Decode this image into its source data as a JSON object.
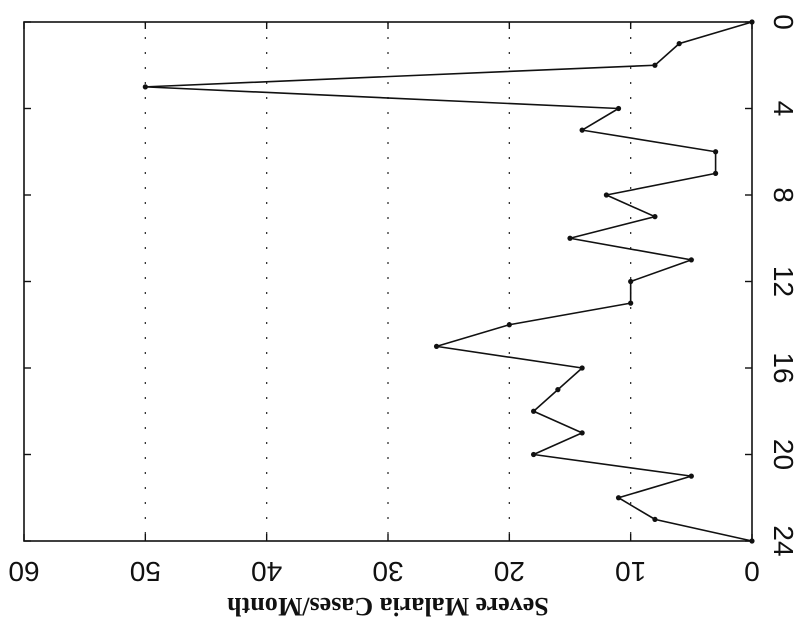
{
  "chart_data": {
    "type": "line",
    "orientation": "rotated-180",
    "ylabel": "Severe Malaria Cases/Month",
    "xlabel": "",
    "xlim": [
      0,
      24
    ],
    "ylim": [
      0,
      60
    ],
    "xticks": [
      0,
      4,
      8,
      12,
      16,
      20,
      24
    ],
    "yticks": [
      0,
      10,
      20,
      30,
      40,
      50,
      60
    ],
    "grid": "horizontal dotted",
    "series": [
      {
        "x": [
          0,
          1,
          2,
          3,
          4,
          5,
          6,
          7,
          8,
          9,
          10,
          11,
          12,
          13,
          14,
          15,
          16,
          17,
          18,
          19,
          20,
          21,
          22,
          23,
          24
        ],
        "values": [
          0,
          6,
          8,
          50,
          11,
          14,
          3,
          3,
          12,
          8,
          15,
          5,
          10,
          10,
          20,
          26,
          14,
          16,
          18,
          14,
          18,
          5,
          11,
          8,
          0
        ]
      }
    ],
    "colors": {
      "line": "#111111",
      "grid": "#333333"
    }
  }
}
